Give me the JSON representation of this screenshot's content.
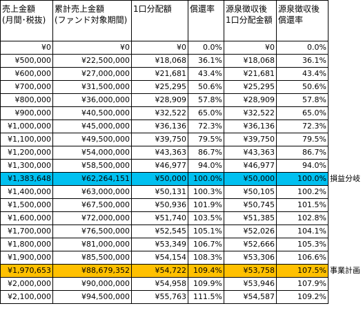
{
  "headers": [
    [
      "売上金額",
      "(月間･税抜)"
    ],
    [
      "累計売上金額",
      "(ファンド対象期間)"
    ],
    [
      "1口分配額",
      ""
    ],
    [
      "償還率",
      ""
    ],
    [
      "源泉徴収後",
      "1口分配金額"
    ],
    [
      "源泉徴収後",
      "償還率"
    ]
  ],
  "rows": [
    {
      "cells": [
        "¥0",
        "¥0",
        "¥0",
        "0.0%",
        "¥0",
        "0.0%"
      ],
      "highlight": "",
      "label": ""
    },
    {
      "cells": [
        "¥500,000",
        "¥22,500,000",
        "¥18,068",
        "36.1%",
        "¥18,068",
        "36.1%"
      ],
      "highlight": "",
      "label": ""
    },
    {
      "cells": [
        "¥600,000",
        "¥27,000,000",
        "¥21,681",
        "43.4%",
        "¥21,681",
        "43.4%"
      ],
      "highlight": "",
      "label": ""
    },
    {
      "cells": [
        "¥700,000",
        "¥31,500,000",
        "¥25,295",
        "50.6%",
        "¥25,295",
        "50.6%"
      ],
      "highlight": "",
      "label": ""
    },
    {
      "cells": [
        "¥800,000",
        "¥36,000,000",
        "¥28,909",
        "57.8%",
        "¥28,909",
        "57.8%"
      ],
      "highlight": "",
      "label": ""
    },
    {
      "cells": [
        "¥900,000",
        "¥40,500,000",
        "¥32,522",
        "65.0%",
        "¥32,522",
        "65.0%"
      ],
      "highlight": "",
      "label": ""
    },
    {
      "cells": [
        "¥1,000,000",
        "¥45,000,000",
        "¥36,136",
        "72.3%",
        "¥36,136",
        "72.3%"
      ],
      "highlight": "",
      "label": ""
    },
    {
      "cells": [
        "¥1,100,000",
        "¥49,500,000",
        "¥39,750",
        "79.5%",
        "¥39,750",
        "79.5%"
      ],
      "highlight": "",
      "label": ""
    },
    {
      "cells": [
        "¥1,200,000",
        "¥54,000,000",
        "¥43,363",
        "86.7%",
        "¥43,363",
        "86.7%"
      ],
      "highlight": "",
      "label": ""
    },
    {
      "cells": [
        "¥1,300,000",
        "¥58,500,000",
        "¥46,977",
        "94.0%",
        "¥46,977",
        "94.0%"
      ],
      "highlight": "",
      "label": ""
    },
    {
      "cells": [
        "¥1,383,648",
        "¥62,264,151",
        "¥50,000",
        "100.0%",
        "¥50,000",
        "100.0%"
      ],
      "highlight": "breakeven",
      "label": "損益分岐"
    },
    {
      "cells": [
        "¥1,400,000",
        "¥63,000,000",
        "¥50,131",
        "100.3%",
        "¥50,105",
        "100.2%"
      ],
      "highlight": "",
      "label": ""
    },
    {
      "cells": [
        "¥1,500,000",
        "¥67,500,000",
        "¥50,936",
        "101.9%",
        "¥50,745",
        "101.5%"
      ],
      "highlight": "",
      "label": ""
    },
    {
      "cells": [
        "¥1,600,000",
        "¥72,000,000",
        "¥51,740",
        "103.5%",
        "¥51,385",
        "102.8%"
      ],
      "highlight": "",
      "label": ""
    },
    {
      "cells": [
        "¥1,700,000",
        "¥76,500,000",
        "¥52,545",
        "105.1%",
        "¥52,026",
        "104.1%"
      ],
      "highlight": "",
      "label": ""
    },
    {
      "cells": [
        "¥1,800,000",
        "¥81,000,000",
        "¥53,349",
        "106.7%",
        "¥52,666",
        "105.3%"
      ],
      "highlight": "",
      "label": ""
    },
    {
      "cells": [
        "¥1,900,000",
        "¥85,500,000",
        "¥54,154",
        "108.3%",
        "¥53,306",
        "106.6%"
      ],
      "highlight": "",
      "label": ""
    },
    {
      "cells": [
        "¥1,970,653",
        "¥88,679,352",
        "¥54,722",
        "109.4%",
        "¥53,758",
        "107.5%"
      ],
      "highlight": "plan",
      "label": "事業計画"
    },
    {
      "cells": [
        "¥2,000,000",
        "¥90,000,000",
        "¥54,958",
        "109.9%",
        "¥53,946",
        "107.9%"
      ],
      "highlight": "",
      "label": ""
    },
    {
      "cells": [
        "¥2,100,000",
        "¥94,500,000",
        "¥55,763",
        "111.5%",
        "¥54,587",
        "109.2%"
      ],
      "highlight": "",
      "label": ""
    }
  ],
  "colors": {
    "breakeven_fill": "#00c0f0",
    "plan_fill": "#ffc000"
  }
}
